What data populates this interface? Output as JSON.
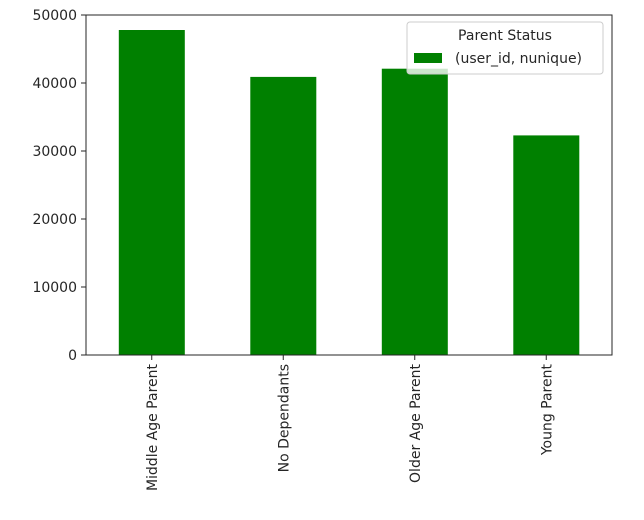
{
  "chart_data": {
    "type": "bar",
    "categories": [
      "Middle Age Parent",
      "No Dependants",
      "Older Age Parent",
      "Young Parent"
    ],
    "series": [
      {
        "name": "(user_id, nunique)",
        "values": [
          47800,
          40900,
          42100,
          32300
        ],
        "color": "#008000"
      }
    ],
    "yticks": [
      0,
      10000,
      20000,
      30000,
      40000,
      50000
    ],
    "ylim": [
      0,
      50000
    ],
    "grid": false,
    "legend": {
      "title": "Parent Status",
      "placement": "top-right"
    }
  }
}
